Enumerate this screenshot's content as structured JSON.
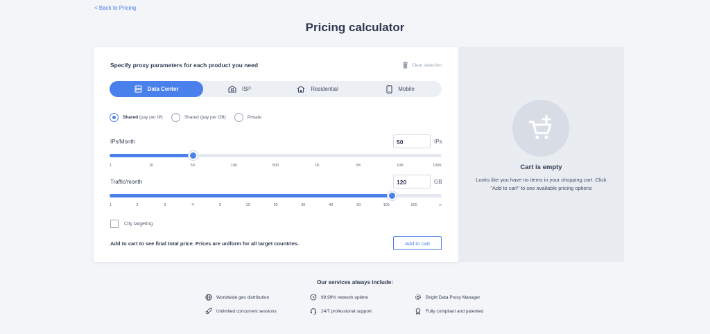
{
  "nav": {
    "back_label": "< Back to Pricing"
  },
  "page": {
    "title": "Pricing calculator"
  },
  "form": {
    "heading": "Specify proxy parameters for each product you need",
    "clear_label": "Clear selection",
    "tabs": [
      {
        "label": "Data Center",
        "icon": "server-icon",
        "active": true
      },
      {
        "label": "ISP",
        "icon": "building-icon",
        "active": false
      },
      {
        "label": "Residential",
        "icon": "house-icon",
        "active": false
      },
      {
        "label": "Mobile",
        "icon": "mobile-icon",
        "active": false
      }
    ],
    "ip_types": [
      {
        "label": "Shared",
        "note": "(pay per IP)",
        "selected": true
      },
      {
        "label": "Shared (pay per GB)",
        "note": "",
        "selected": false
      },
      {
        "label": "Private",
        "note": "",
        "selected": false
      }
    ],
    "ips": {
      "label": "IPs/Month",
      "value": "50",
      "unit": "IPs",
      "ticks": [
        "1",
        "10",
        "50",
        "100",
        "500",
        "1K",
        "5K",
        "10K",
        "100K"
      ],
      "selected_tick_index": 2
    },
    "traffic": {
      "label": "Traffic/month",
      "value": "120",
      "unit": "GB",
      "ticks": [
        "1",
        "2",
        "3",
        "4",
        "5",
        "10",
        "20",
        "30",
        "40",
        "50",
        "100",
        "200",
        "∞"
      ],
      "selected_position": 10.2
    },
    "city_targeting": {
      "label": "City targeting",
      "checked": false
    },
    "footer_note": "Add to cart to see final total price. Prices are uniform for all target countries.",
    "add_to_cart_label": "Add to cart"
  },
  "cart": {
    "title": "Cart is empty",
    "description": "Looks like you have no items in your shopping cart. Click \"Add to cart\" to see available pricing options",
    "icon": "cart-add-icon"
  },
  "services": {
    "title": "Our services always include:",
    "items": [
      {
        "label": "Worldwide geo distribution",
        "icon": "globe-icon"
      },
      {
        "label": "99.99% network uptime",
        "icon": "uptime-icon"
      },
      {
        "label": "Bright Data Proxy Manager",
        "icon": "gear-icon"
      },
      {
        "label": "Unlimited concurrent sessions",
        "icon": "rocket-icon"
      },
      {
        "label": "24/7 professional support",
        "icon": "headset-icon"
      },
      {
        "label": "Fully compliant and patented",
        "icon": "award-icon"
      }
    ]
  },
  "colors": {
    "accent": "#4a80eb",
    "background": "#f3f5f8",
    "cart_panel": "#e9ecf1"
  }
}
